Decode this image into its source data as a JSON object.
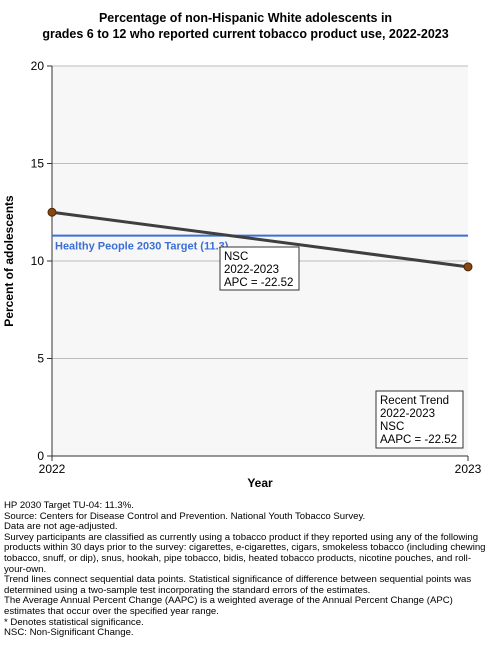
{
  "chart_data": {
    "type": "line",
    "title": [
      "Percentage of non-Hispanic White adolescents in",
      "grades 6 to 12 who reported current tobacco product use, 2022-2023"
    ],
    "xlabel": "Year",
    "ylabel": "Percent of adolescents",
    "x": [
      2022,
      2023
    ],
    "xlim": [
      2022,
      2023
    ],
    "ylim": [
      0,
      20
    ],
    "y_ticks": [
      0,
      5,
      10,
      15,
      20
    ],
    "x_ticks": [
      "2022",
      "2023"
    ],
    "grid": true,
    "series": [
      {
        "values": [
          12.5,
          9.7
        ],
        "color": "#3f3f3f",
        "marker_color": "#8b4513"
      }
    ],
    "target": {
      "value": 11.3,
      "label": "Healthy People 2030 Target (11.3)",
      "color": "#3b6fd6"
    },
    "annotations": [
      {
        "lines": [
          "NSC",
          "2022-2023",
          "APC = -22.52"
        ]
      },
      {
        "lines": [
          "Recent Trend",
          "2022-2023",
          "NSC",
          "AAPC = -22.52"
        ]
      }
    ]
  },
  "notes": [
    "HP 2030 Target TU-04: 11.3%.",
    "Source: Centers for Disease Control and Prevention. National Youth Tobacco Survey.",
    "Data are not age-adjusted.",
    "Survey participants are classified as currently using a tobacco product if they reported using any of the following products within 30 days prior to the survey: cigarettes, e-cigarettes, cigars, smokeless tobacco (including chewing tobacco, snuff, or dip), snus, hookah, pipe tobacco, bidis, heated tobacco products, nicotine pouches, and roll-your-own.",
    "Trend lines connect sequential data points. Statistical significance of difference between sequential points was determined using a two-sample test incorporating the standard errors of the estimates.",
    "The Average Annual Percent Change (AAPC) is a weighted average of the Annual Percent Change (APC) estimates that occur over the specified year range.",
    "* Denotes statistical significance.",
    "NSC: Non-Significant Change."
  ]
}
